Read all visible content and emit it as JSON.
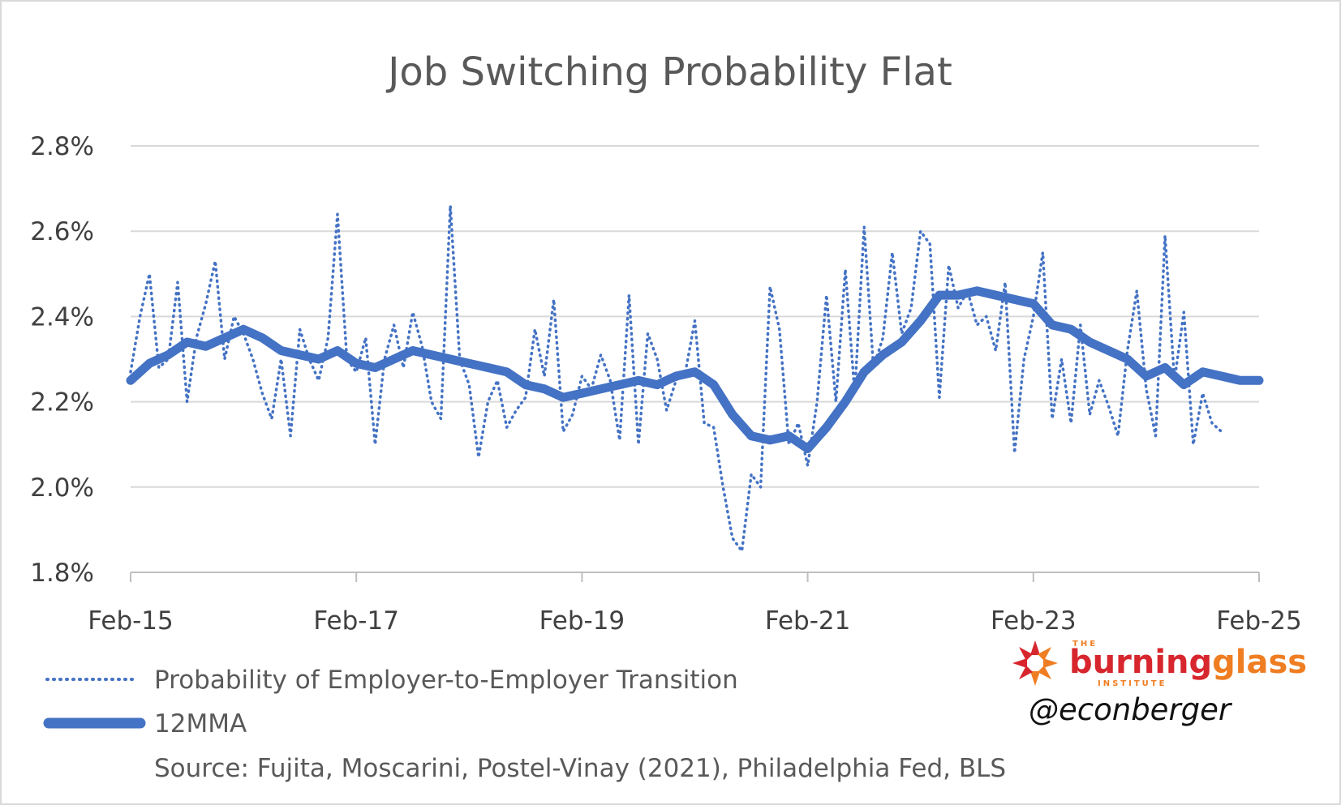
{
  "chart_data": {
    "type": "line",
    "title": "Job Switching Probability Flat",
    "xlabel": "",
    "ylabel": "",
    "x_ticks": [
      "Feb-15",
      "Feb-17",
      "Feb-19",
      "Feb-21",
      "Feb-23",
      "Feb-25"
    ],
    "y_ticks": [
      "1.8%",
      "2.0%",
      "2.2%",
      "2.4%",
      "2.6%",
      "2.8%"
    ],
    "ylim": [
      1.8,
      2.8
    ],
    "xlim": [
      "2015-02",
      "2025-02"
    ],
    "grid": "horizontal",
    "legend_position": "bottom-left",
    "series": [
      {
        "name": "Probability of Employer-to-Employer Transition",
        "style": "dotted",
        "color": "#4472c4",
        "points": [
          [
            "2015-02",
            2.27
          ],
          [
            "2015-03",
            2.4
          ],
          [
            "2015-04",
            2.5
          ],
          [
            "2015-05",
            2.28
          ],
          [
            "2015-06",
            2.3
          ],
          [
            "2015-07",
            2.48
          ],
          [
            "2015-08",
            2.2
          ],
          [
            "2015-09",
            2.35
          ],
          [
            "2015-10",
            2.43
          ],
          [
            "2015-11",
            2.53
          ],
          [
            "2015-12",
            2.3
          ],
          [
            "2016-01",
            2.4
          ],
          [
            "2016-02",
            2.36
          ],
          [
            "2016-03",
            2.3
          ],
          [
            "2016-04",
            2.22
          ],
          [
            "2016-05",
            2.16
          ],
          [
            "2016-06",
            2.3
          ],
          [
            "2016-07",
            2.12
          ],
          [
            "2016-08",
            2.37
          ],
          [
            "2016-09",
            2.3
          ],
          [
            "2016-10",
            2.25
          ],
          [
            "2016-11",
            2.35
          ],
          [
            "2016-12",
            2.64
          ],
          [
            "2017-01",
            2.3
          ],
          [
            "2017-02",
            2.27
          ],
          [
            "2017-03",
            2.35
          ],
          [
            "2017-04",
            2.1
          ],
          [
            "2017-05",
            2.3
          ],
          [
            "2017-06",
            2.38
          ],
          [
            "2017-07",
            2.28
          ],
          [
            "2017-08",
            2.41
          ],
          [
            "2017-09",
            2.33
          ],
          [
            "2017-10",
            2.2
          ],
          [
            "2017-11",
            2.16
          ],
          [
            "2017-12",
            2.66
          ],
          [
            "2018-01",
            2.3
          ],
          [
            "2018-02",
            2.24
          ],
          [
            "2018-03",
            2.07
          ],
          [
            "2018-04",
            2.2
          ],
          [
            "2018-05",
            2.25
          ],
          [
            "2018-06",
            2.14
          ],
          [
            "2018-07",
            2.18
          ],
          [
            "2018-08",
            2.21
          ],
          [
            "2018-09",
            2.37
          ],
          [
            "2018-10",
            2.26
          ],
          [
            "2018-11",
            2.44
          ],
          [
            "2018-12",
            2.13
          ],
          [
            "2019-01",
            2.17
          ],
          [
            "2019-02",
            2.26
          ],
          [
            "2019-03",
            2.23
          ],
          [
            "2019-04",
            2.31
          ],
          [
            "2019-05",
            2.25
          ],
          [
            "2019-06",
            2.11
          ],
          [
            "2019-07",
            2.45
          ],
          [
            "2019-08",
            2.1
          ],
          [
            "2019-09",
            2.36
          ],
          [
            "2019-10",
            2.3
          ],
          [
            "2019-11",
            2.18
          ],
          [
            "2019-12",
            2.25
          ],
          [
            "2020-01",
            2.27
          ],
          [
            "2020-02",
            2.39
          ],
          [
            "2020-03",
            2.15
          ],
          [
            "2020-04",
            2.14
          ],
          [
            "2020-05",
            2.0
          ],
          [
            "2020-06",
            1.88
          ],
          [
            "2020-07",
            1.85
          ],
          [
            "2020-08",
            2.03
          ],
          [
            "2020-09",
            2.0
          ],
          [
            "2020-10",
            2.47
          ],
          [
            "2020-11",
            2.37
          ],
          [
            "2020-12",
            2.1
          ],
          [
            "2021-01",
            2.15
          ],
          [
            "2021-02",
            2.05
          ],
          [
            "2021-03",
            2.2
          ],
          [
            "2021-04",
            2.45
          ],
          [
            "2021-05",
            2.2
          ],
          [
            "2021-06",
            2.51
          ],
          [
            "2021-07",
            2.22
          ],
          [
            "2021-08",
            2.61
          ],
          [
            "2021-09",
            2.28
          ],
          [
            "2021-10",
            2.35
          ],
          [
            "2021-11",
            2.55
          ],
          [
            "2021-12",
            2.36
          ],
          [
            "2022-01",
            2.42
          ],
          [
            "2022-02",
            2.6
          ],
          [
            "2022-03",
            2.57
          ],
          [
            "2022-04",
            2.21
          ],
          [
            "2022-05",
            2.52
          ],
          [
            "2022-06",
            2.42
          ],
          [
            "2022-07",
            2.46
          ],
          [
            "2022-08",
            2.38
          ],
          [
            "2022-09",
            2.4
          ],
          [
            "2022-10",
            2.32
          ],
          [
            "2022-11",
            2.48
          ],
          [
            "2022-12",
            2.08
          ],
          [
            "2023-01",
            2.3
          ],
          [
            "2023-02",
            2.4
          ],
          [
            "2023-03",
            2.55
          ],
          [
            "2023-04",
            2.16
          ],
          [
            "2023-05",
            2.3
          ],
          [
            "2023-06",
            2.15
          ],
          [
            "2023-07",
            2.38
          ],
          [
            "2023-08",
            2.17
          ],
          [
            "2023-09",
            2.25
          ],
          [
            "2023-10",
            2.19
          ],
          [
            "2023-11",
            2.12
          ],
          [
            "2023-12",
            2.32
          ],
          [
            "2024-01",
            2.46
          ],
          [
            "2024-02",
            2.23
          ],
          [
            "2024-03",
            2.12
          ],
          [
            "2024-04",
            2.59
          ],
          [
            "2024-05",
            2.25
          ],
          [
            "2024-06",
            2.41
          ],
          [
            "2024-07",
            2.1
          ],
          [
            "2024-08",
            2.22
          ],
          [
            "2024-09",
            2.15
          ],
          [
            "2024-10",
            2.13
          ]
        ]
      },
      {
        "name": "12MMA",
        "style": "solid",
        "color": "#4472c4",
        "points": [
          [
            "2015-02",
            2.25
          ],
          [
            "2015-04",
            2.29
          ],
          [
            "2015-06",
            2.31
          ],
          [
            "2015-08",
            2.34
          ],
          [
            "2015-10",
            2.33
          ],
          [
            "2015-12",
            2.35
          ],
          [
            "2016-02",
            2.37
          ],
          [
            "2016-04",
            2.35
          ],
          [
            "2016-06",
            2.32
          ],
          [
            "2016-08",
            2.31
          ],
          [
            "2016-10",
            2.3
          ],
          [
            "2016-12",
            2.32
          ],
          [
            "2017-02",
            2.29
          ],
          [
            "2017-04",
            2.28
          ],
          [
            "2017-06",
            2.3
          ],
          [
            "2017-08",
            2.32
          ],
          [
            "2017-10",
            2.31
          ],
          [
            "2017-12",
            2.3
          ],
          [
            "2018-02",
            2.29
          ],
          [
            "2018-04",
            2.28
          ],
          [
            "2018-06",
            2.27
          ],
          [
            "2018-08",
            2.24
          ],
          [
            "2018-10",
            2.23
          ],
          [
            "2018-12",
            2.21
          ],
          [
            "2019-02",
            2.22
          ],
          [
            "2019-04",
            2.23
          ],
          [
            "2019-06",
            2.24
          ],
          [
            "2019-08",
            2.25
          ],
          [
            "2019-10",
            2.24
          ],
          [
            "2019-12",
            2.26
          ],
          [
            "2020-02",
            2.27
          ],
          [
            "2020-04",
            2.24
          ],
          [
            "2020-06",
            2.17
          ],
          [
            "2020-08",
            2.12
          ],
          [
            "2020-10",
            2.11
          ],
          [
            "2020-12",
            2.12
          ],
          [
            "2021-02",
            2.09
          ],
          [
            "2021-04",
            2.14
          ],
          [
            "2021-06",
            2.2
          ],
          [
            "2021-08",
            2.27
          ],
          [
            "2021-10",
            2.31
          ],
          [
            "2021-12",
            2.34
          ],
          [
            "2022-02",
            2.39
          ],
          [
            "2022-04",
            2.45
          ],
          [
            "2022-06",
            2.45
          ],
          [
            "2022-08",
            2.46
          ],
          [
            "2022-10",
            2.45
          ],
          [
            "2022-12",
            2.44
          ],
          [
            "2023-02",
            2.43
          ],
          [
            "2023-04",
            2.38
          ],
          [
            "2023-06",
            2.37
          ],
          [
            "2023-08",
            2.34
          ],
          [
            "2023-10",
            2.32
          ],
          [
            "2023-12",
            2.3
          ],
          [
            "2024-02",
            2.26
          ],
          [
            "2024-04",
            2.28
          ],
          [
            "2024-06",
            2.24
          ],
          [
            "2024-08",
            2.27
          ],
          [
            "2024-10",
            2.26
          ],
          [
            "2024-12",
            2.25
          ],
          [
            "2025-02",
            2.25
          ]
        ]
      }
    ],
    "source": "Source: Fujita, Moscarini, Postel-Vinay (2021), Philadelphia Fed, BLS"
  },
  "branding": {
    "logo_small_top": "THE",
    "logo_word_1": "burning",
    "logo_word_2": "glass",
    "logo_small_bottom": "INSTITUTE",
    "handle": "@econberger",
    "colors": {
      "red": "#d7262d",
      "orange": "#ef7d22"
    }
  }
}
